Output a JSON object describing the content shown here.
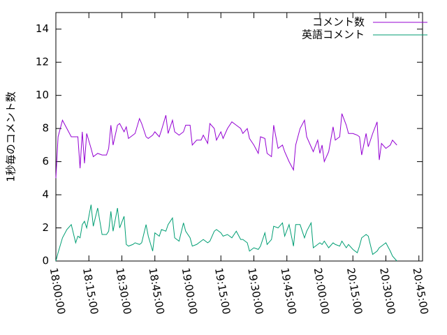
{
  "chart_data": {
    "type": "line",
    "ylabel": "1秒毎のコメント数",
    "x": [
      "18:00:00",
      "18:01:00",
      "18:03:00",
      "18:05:00",
      "18:07:00",
      "18:09:00",
      "18:10:00",
      "18:11:00",
      "18:12:00",
      "18:13:00",
      "18:14:00",
      "18:16:00",
      "18:17:00",
      "18:19:00",
      "18:21:00",
      "18:23:00",
      "18:24:00",
      "18:25:00",
      "18:26:00",
      "18:28:00",
      "18:29:00",
      "18:31:00",
      "18:32:00",
      "18:33:00",
      "18:35:00",
      "18:36:00",
      "18:38:00",
      "18:39:00",
      "18:41:00",
      "18:42:00",
      "18:44:00",
      "18:45:00",
      "18:47:00",
      "18:48:00",
      "18:50:00",
      "18:51:00",
      "18:53:00",
      "18:54:00",
      "18:56:00",
      "18:58:00",
      "18:59:00",
      "19:01:00",
      "19:02:00",
      "19:04:00",
      "19:06:00",
      "19:07:00",
      "19:09:00",
      "19:10:00",
      "19:12:00",
      "19:13:00",
      "19:15:00",
      "19:16:00",
      "19:18:00",
      "19:20:00",
      "19:22:00",
      "19:24:00",
      "19:25:00",
      "19:27:00",
      "19:28:00",
      "19:30:00",
      "19:32:00",
      "19:33:00",
      "19:35:00",
      "19:36:00",
      "19:38:00",
      "19:39:00",
      "19:41:00",
      "19:43:00",
      "19:44:00",
      "19:46:00",
      "19:48:00",
      "19:49:00",
      "19:51:00",
      "19:53:00",
      "19:54:00",
      "19:56:00",
      "19:57:00",
      "19:59:00",
      "20:00:00",
      "20:01:00",
      "20:02:00",
      "20:04:00",
      "20:06:00",
      "20:07:00",
      "20:09:00",
      "20:10:00",
      "20:12:00",
      "20:13:00",
      "20:15:00",
      "20:17:00",
      "20:18:00",
      "20:19:00",
      "20:21:00",
      "20:22:00",
      "20:24:00",
      "20:26:00",
      "20:27:00",
      "20:28:00",
      "20:30:00",
      "20:32:00",
      "20:33:00",
      "20:35:00"
    ],
    "series": [
      {
        "name": "コメント数",
        "color": "#9400d3",
        "values": [
          5.0,
          7.5,
          8.5,
          8.0,
          7.5,
          7.5,
          7.5,
          5.6,
          7.8,
          5.9,
          7.7,
          6.8,
          6.3,
          6.5,
          6.4,
          6.4,
          6.8,
          8.2,
          7.0,
          8.2,
          8.3,
          7.8,
          8.1,
          7.4,
          7.6,
          7.7,
          8.6,
          8.3,
          7.5,
          7.4,
          7.6,
          7.8,
          7.5,
          7.9,
          8.8,
          7.7,
          8.5,
          7.8,
          7.6,
          7.8,
          8.2,
          8.2,
          7.0,
          7.3,
          7.3,
          7.6,
          7.1,
          8.3,
          8.0,
          7.3,
          7.8,
          7.4,
          8.0,
          8.4,
          8.2,
          8.0,
          7.7,
          8.0,
          7.4,
          7.0,
          6.5,
          7.5,
          7.4,
          6.5,
          6.3,
          8.2,
          6.8,
          7.0,
          6.6,
          6.0,
          5.5,
          7.0,
          8.0,
          8.5,
          7.5,
          6.9,
          6.6,
          7.3,
          6.5,
          7.0,
          6.0,
          6.6,
          8.1,
          7.3,
          7.5,
          8.9,
          8.2,
          7.7,
          7.7,
          7.6,
          7.5,
          6.4,
          7.7,
          6.9,
          7.7,
          8.4,
          6.1,
          7.1,
          6.8,
          7.0,
          7.3,
          7.0
        ]
      },
      {
        "name": "英語コメント",
        "color": "#009e73",
        "values": [
          0.0,
          0.5,
          1.4,
          1.9,
          2.2,
          1.1,
          1.5,
          1.4,
          2.2,
          2.4,
          2.0,
          3.4,
          2.1,
          3.2,
          1.6,
          1.6,
          1.8,
          3.0,
          1.8,
          3.2,
          2.0,
          2.7,
          1.0,
          0.9,
          1.0,
          1.1,
          1.0,
          1.1,
          2.2,
          1.5,
          0.6,
          1.7,
          1.5,
          1.9,
          1.8,
          2.2,
          2.6,
          1.4,
          1.2,
          2.3,
          1.8,
          1.4,
          0.9,
          1.0,
          1.2,
          1.3,
          1.1,
          1.2,
          1.8,
          1.9,
          1.7,
          1.5,
          1.6,
          1.4,
          1.8,
          1.3,
          1.3,
          1.1,
          0.6,
          0.8,
          0.7,
          0.9,
          1.7,
          1.0,
          1.3,
          2.1,
          2.0,
          2.3,
          1.5,
          2.2,
          0.9,
          2.2,
          2.2,
          1.4,
          1.8,
          2.3,
          0.8,
          1.0,
          1.1,
          1.0,
          1.2,
          0.8,
          1.1,
          1.0,
          0.9,
          1.2,
          0.8,
          1.0,
          0.7,
          0.5,
          0.9,
          1.4,
          1.6,
          1.5,
          0.4,
          0.6,
          0.8,
          0.9,
          1.1,
          0.6,
          0.3,
          0.0
        ]
      }
    ],
    "xlim": [
      "18:00:00",
      "20:46:40"
    ],
    "xticks": [
      "18:00:00",
      "18:15:00",
      "18:30:00",
      "18:45:00",
      "19:00:00",
      "19:15:00",
      "19:30:00",
      "19:45:00",
      "20:00:00",
      "20:15:00",
      "20:30:00",
      "20:45:00"
    ],
    "ylim": [
      0,
      15
    ],
    "yticks": [
      0,
      2,
      4,
      6,
      8,
      10,
      12,
      14
    ],
    "legend": "top-right"
  }
}
